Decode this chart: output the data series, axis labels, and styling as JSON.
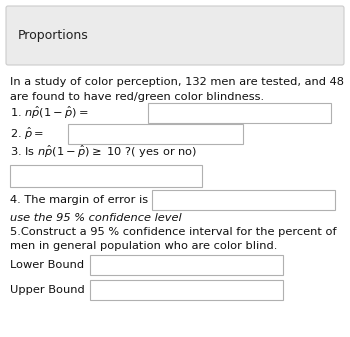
{
  "title": "Proportions",
  "white": "#ffffff",
  "title_box_color": "#ebebeb",
  "intro_line1": "In a study of color perception, 132 men are tested, and 48",
  "intro_line2": "are found to have red/green color blindness.",
  "q1_label": "1. $n\\hat{p}(1 - \\hat{p})=$",
  "q2_label": "2. $\\hat{p}=$",
  "q3_label": "3. Is $n\\hat{p}(1 - \\hat{p}) \\geq$ 10 ?( yes or no)",
  "q4_label": "4. The margin of error is",
  "italic_line": "use the 95 % confidence level",
  "q5_line1": "5.Construct a 95 % confidence interval for the percent of",
  "q5_line2": "men in general population who are color blind.",
  "lower_label": "Lower Bound",
  "upper_label": "Upper Bound",
  "box_border_color": "#b0b0b0",
  "font_size": 8.2,
  "title_font_size": 9.0,
  "fig_width": 3.5,
  "fig_height": 3.37,
  "dpi": 100
}
